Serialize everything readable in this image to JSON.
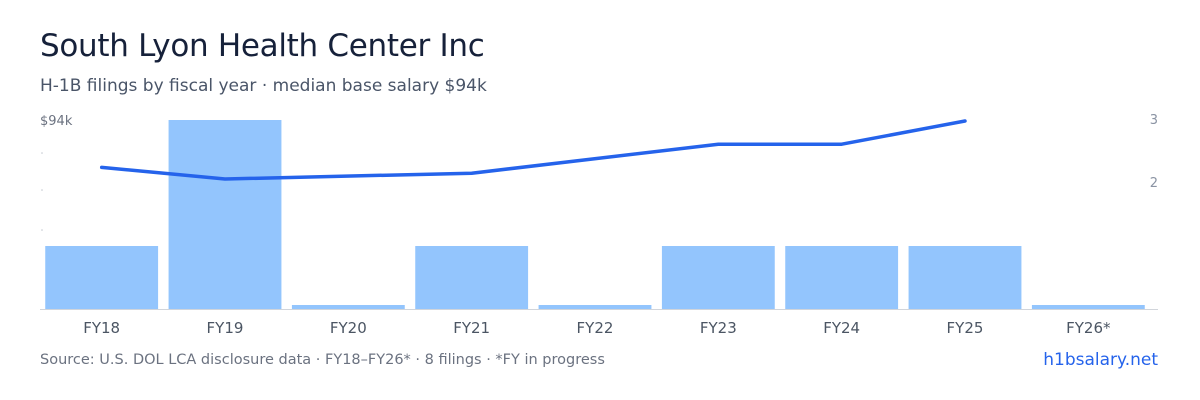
{
  "header": {
    "title": "South Lyon Health Center Inc",
    "subtitle": "H-1B filings by fiscal year · median base salary $94k"
  },
  "footer": {
    "source": "Source: U.S. DOL LCA disclosure data · FY18–FY26* · 8 filings · *FY in progress",
    "brand": "h1bsalary.net"
  },
  "colors": {
    "bar": "#93c5fd",
    "line": "#2563eb",
    "baseline": "#d1d5db"
  },
  "chart_data": {
    "type": "bar",
    "categories": [
      "FY18",
      "FY19",
      "FY20",
      "FY21",
      "FY22",
      "FY23",
      "FY24",
      "FY25",
      "FY26*"
    ],
    "series": [
      {
        "type": "bar",
        "axis": "right",
        "values": [
          1,
          3,
          0,
          1,
          0,
          1,
          1,
          1,
          0
        ]
      },
      {
        "type": "line",
        "axis": "left",
        "values": [
          90,
          89,
          null,
          89.5,
          null,
          92,
          92,
          94,
          null
        ]
      }
    ],
    "left_axis": {
      "top_label": "$94k"
    },
    "right_axis": {
      "ticks": [
        "3",
        "2"
      ],
      "range": [
        0,
        3
      ]
    }
  }
}
